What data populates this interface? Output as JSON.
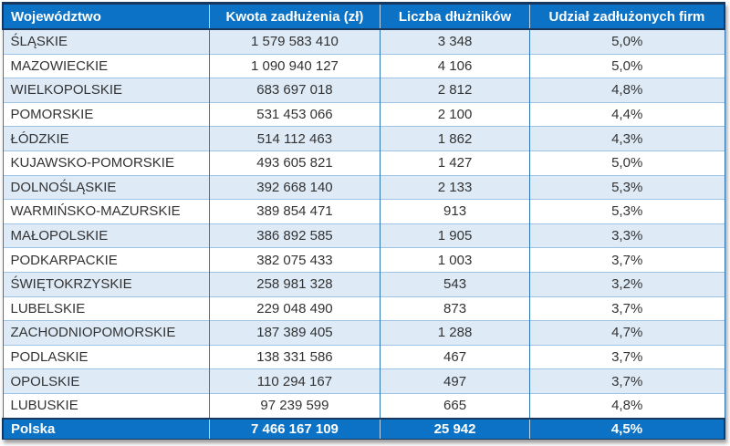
{
  "chart_data": {
    "type": "table",
    "title": "",
    "columns": [
      "Województwo",
      "Kwota zadłużenia (zł)",
      "Liczba dłużników",
      "Udział zadłużonych firm"
    ],
    "rows": [
      [
        "ŚLĄSKIE",
        "1 579 583 410",
        "3 348",
        "5,0%"
      ],
      [
        "MAZOWIECKIE",
        "1 090 940 127",
        "4 106",
        "5,0%"
      ],
      [
        "WIELKOPOLSKIE",
        "683 697 018",
        "2 812",
        "4,8%"
      ],
      [
        "POMORSKIE",
        "531 453 066",
        "2 100",
        "4,4%"
      ],
      [
        "ŁÓDZKIE",
        "514 112 463",
        "1 862",
        "4,3%"
      ],
      [
        "KUJAWSKO-POMORSKIE",
        "493 605 821",
        "1 427",
        "5,0%"
      ],
      [
        "DOLNOŚLĄSKIE",
        "392 668 140",
        "2 133",
        "5,3%"
      ],
      [
        "WARMIŃSKO-MAZURSKIE",
        "389 854 471",
        "913",
        "5,3%"
      ],
      [
        "MAŁOPOLSKIE",
        "386 892 585",
        "1 905",
        "3,3%"
      ],
      [
        "PODKARPACKIE",
        "382 075 433",
        "1 003",
        "3,7%"
      ],
      [
        "ŚWIĘTOKRZYSKIE",
        "258 981 328",
        "543",
        "3,2%"
      ],
      [
        "LUBELSKIE",
        "229 048 490",
        "873",
        "3,7%"
      ],
      [
        "ZACHODNIOPOMORSKIE",
        "187 389 405",
        "1 288",
        "4,7%"
      ],
      [
        "PODLASKIE",
        "138 331 586",
        "467",
        "3,7%"
      ],
      [
        "OPOLSKIE",
        "110 294 167",
        "497",
        "3,7%"
      ],
      [
        "LUBUSKIE",
        "97 239 599",
        "665",
        "4,8%"
      ]
    ],
    "footer": [
      "Polska",
      "7 466 167 109",
      "25 942",
      "4,5%"
    ]
  },
  "colors": {
    "header_bg": "#0b72c5",
    "header_text": "#ffffff",
    "band_row_bg": "#deeaf6",
    "plain_row_bg": "#ffffff",
    "body_text": "#333333",
    "dark_outline": "#17375e",
    "vertical_grid": "#2e75b6",
    "horizontal_grid": "#9dc3e6",
    "footer_bg": "#0b72c5",
    "footer_text": "#ffffff"
  }
}
